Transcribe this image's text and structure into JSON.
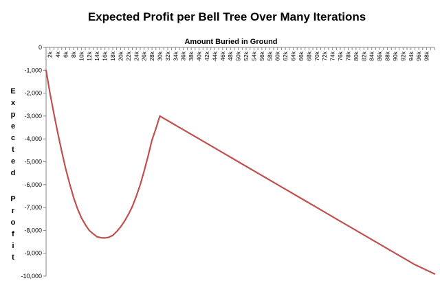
{
  "chart_data": {
    "type": "line",
    "title": "Expected Profit per Bell Tree Over Many Iterations",
    "xlabel": "Amount Buried in Ground",
    "ylabel": "Expected Profit",
    "x_tick_labels": [
      "2k",
      "4k",
      "6k",
      "8k",
      "10k",
      "12k",
      "14k",
      "16k",
      "18k",
      "20k",
      "22k",
      "24k",
      "26k",
      "28k",
      "30k",
      "32k",
      "34k",
      "36k",
      "38k",
      "40k",
      "42k",
      "44k",
      "46k",
      "48k",
      "50k",
      "52k",
      "54k",
      "56k",
      "58k",
      "60k",
      "62k",
      "64k",
      "66k",
      "68k",
      "70k",
      "72k",
      "74k",
      "76k",
      "78k",
      "80k",
      "82k",
      "84k",
      "86k",
      "88k",
      "90k",
      "92k",
      "94k",
      "96k",
      "98k"
    ],
    "y_tick_labels": [
      "0",
      "-1,000",
      "-2,000",
      "-3,000",
      "-4,000",
      "-5,000",
      "-6,000",
      "-7,000",
      "-8,000",
      "-9,000",
      "-10,000"
    ],
    "y_tick_values": [
      0,
      -1000,
      -2000,
      -3000,
      -4000,
      -5000,
      -6000,
      -7000,
      -8000,
      -9000,
      -10000
    ],
    "xlim": [
      1000,
      100000
    ],
    "ylim": [
      -10000,
      0
    ],
    "grid": false,
    "line_color": "#C0504D",
    "series": [
      {
        "x": [
          1000,
          2000,
          3000,
          4000,
          5000,
          6000,
          7000,
          8000,
          9000,
          10000,
          11000,
          12000,
          13000,
          14000,
          15000,
          16000,
          17000,
          18000,
          19000,
          20000,
          21000,
          22000,
          23000,
          24000,
          25000,
          26000,
          27000,
          28000,
          29000,
          30000,
          35000,
          40000,
          45000,
          50000,
          55000,
          60000,
          65000,
          70000,
          75000,
          80000,
          85000,
          90000,
          95000,
          100000
        ],
        "y": [
          -1000,
          -2000,
          -2900,
          -3750,
          -4550,
          -5300,
          -5950,
          -6550,
          -7050,
          -7450,
          -7750,
          -8000,
          -8150,
          -8280,
          -8320,
          -8330,
          -8300,
          -8220,
          -8050,
          -7850,
          -7600,
          -7300,
          -6950,
          -6500,
          -6000,
          -5400,
          -4750,
          -4050,
          -3550,
          -3000,
          -3500,
          -4000,
          -4500,
          -5000,
          -5500,
          -6000,
          -6500,
          -7000,
          -7500,
          -8000,
          -8500,
          -9000,
          -9500,
          -9900
        ]
      }
    ]
  }
}
